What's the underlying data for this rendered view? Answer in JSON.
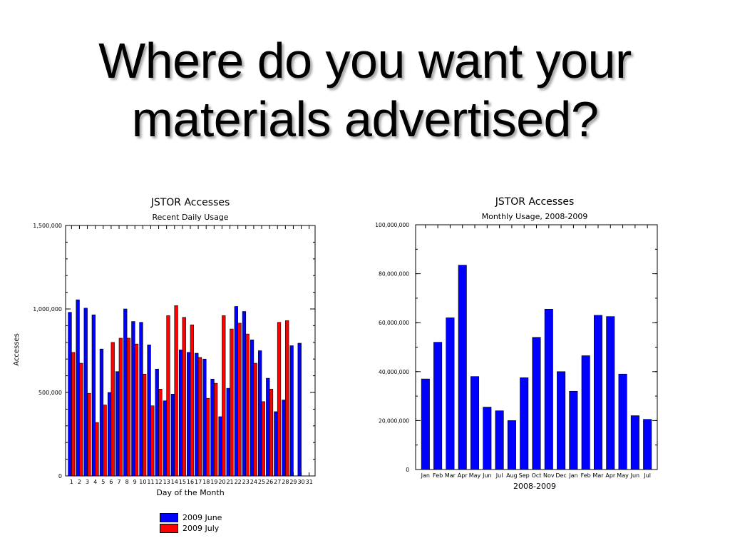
{
  "slide": {
    "title_line1": "Where do you want your",
    "title_line2": "materials advertised?"
  },
  "colors": {
    "june": "#0000ff",
    "july": "#ff0000",
    "monthly": "#0000ff"
  },
  "chart_data": [
    {
      "type": "bar",
      "title": "JSTOR Accesses",
      "subtitle": "Recent Daily Usage",
      "xlabel": "Day of the Month",
      "ylabel": "Accesses",
      "ylim": [
        0,
        1500000
      ],
      "yticks": [
        "0",
        "500,000",
        "1,000,000",
        "1,500,000"
      ],
      "categories": [
        "1",
        "2",
        "3",
        "4",
        "5",
        "6",
        "7",
        "8",
        "9",
        "10",
        "11",
        "12",
        "13",
        "14",
        "15",
        "16",
        "17",
        "18",
        "19",
        "20",
        "21",
        "22",
        "23",
        "24",
        "25",
        "26",
        "27",
        "28",
        "29",
        "30",
        "31"
      ],
      "series": [
        {
          "name": "2009 June",
          "values": [
            980000,
            1055000,
            1005000,
            965000,
            760000,
            500000,
            625000,
            1000000,
            925000,
            920000,
            785000,
            640000,
            450000,
            490000,
            755000,
            740000,
            735000,
            700000,
            580000,
            355000,
            525000,
            1015000,
            985000,
            815000,
            750000,
            585000,
            385000,
            455000,
            780000,
            795000,
            null
          ]
        },
        {
          "name": "2009 July",
          "values": [
            740000,
            675000,
            495000,
            320000,
            425000,
            800000,
            825000,
            825000,
            790000,
            610000,
            420000,
            520000,
            960000,
            1020000,
            950000,
            905000,
            710000,
            465000,
            555000,
            960000,
            880000,
            915000,
            850000,
            675000,
            445000,
            520000,
            920000,
            930000,
            null,
            null,
            null
          ]
        }
      ],
      "legend": "bottom-left"
    },
    {
      "type": "bar",
      "title": "JSTOR Accesses",
      "subtitle": "Monthly Usage, 2008-2009",
      "xlabel": "2008-2009",
      "ylabel": "",
      "ylim": [
        0,
        100000000
      ],
      "yticks": [
        "0",
        "20,000,000",
        "40,000,000",
        "60,000,000",
        "80,000,000",
        "100,000,000"
      ],
      "categories": [
        "Jan",
        "Feb",
        "Mar",
        "Apr",
        "May",
        "Jun",
        "Jul",
        "Aug",
        "Sep",
        "Oct",
        "Nov",
        "Dec",
        "Jan",
        "Feb",
        "Mar",
        "Apr",
        "May",
        "Jun",
        "Jul"
      ],
      "values": [
        37000000,
        52000000,
        62000000,
        83500000,
        38000000,
        25500000,
        24000000,
        20000000,
        37500000,
        54000000,
        65500000,
        40000000,
        32000000,
        46500000,
        63000000,
        62500000,
        39000000,
        22000000,
        20500000
      ]
    }
  ]
}
